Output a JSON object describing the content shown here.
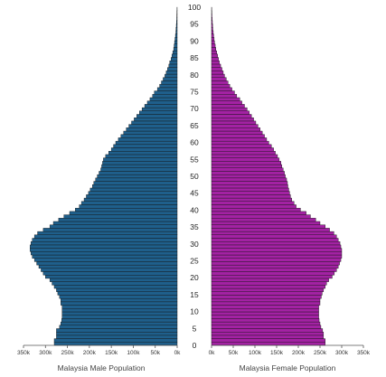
{
  "chart_data": {
    "type": "bar",
    "orientation": "horizontal-pyramid",
    "colors": {
      "male": "#1f5f8b",
      "female": "#a322a3",
      "bar_edge": "#111111"
    },
    "ages": [
      0,
      1,
      2,
      3,
      4,
      5,
      6,
      7,
      8,
      9,
      10,
      11,
      12,
      13,
      14,
      15,
      16,
      17,
      18,
      19,
      20,
      21,
      22,
      23,
      24,
      25,
      26,
      27,
      28,
      29,
      30,
      31,
      32,
      33,
      34,
      35,
      36,
      37,
      38,
      39,
      40,
      41,
      42,
      43,
      44,
      45,
      46,
      47,
      48,
      49,
      50,
      51,
      52,
      53,
      54,
      55,
      56,
      57,
      58,
      59,
      60,
      61,
      62,
      63,
      64,
      65,
      66,
      67,
      68,
      69,
      70,
      71,
      72,
      73,
      74,
      75,
      76,
      77,
      78,
      79,
      80,
      81,
      82,
      83,
      84,
      85,
      86,
      87,
      88,
      89,
      90,
      91,
      92,
      93,
      94,
      95,
      96,
      97,
      98,
      99,
      100
    ],
    "age_ticks": [
      "0",
      "5",
      "10",
      "15",
      "20",
      "25",
      "30",
      "35",
      "40",
      "45",
      "50",
      "55",
      "60",
      "65",
      "70",
      "75",
      "80",
      "85",
      "90",
      "95",
      "100"
    ],
    "series": [
      {
        "name": "Malaysia Male Population",
        "values": [
          280000,
          280000,
          275000,
          275000,
          275000,
          268000,
          265000,
          263000,
          262000,
          262000,
          262000,
          262000,
          265000,
          265000,
          268000,
          272000,
          275000,
          280000,
          285000,
          290000,
          300000,
          305000,
          310000,
          315000,
          320000,
          325000,
          330000,
          333000,
          335000,
          335000,
          333000,
          330000,
          325000,
          318000,
          305000,
          290000,
          282000,
          270000,
          258000,
          245000,
          232000,
          223000,
          218000,
          212000,
          207000,
          202000,
          198000,
          193000,
          190000,
          186000,
          182000,
          178000,
          174000,
          172000,
          170000,
          168000,
          163000,
          156000,
          150000,
          145000,
          140000,
          134000,
          128000,
          122000,
          116000,
          110000,
          104000,
          98000,
          92000,
          86000,
          80000,
          74000,
          68000,
          62000,
          56000,
          52000,
          45000,
          40000,
          36000,
          32000,
          28000,
          25000,
          22000,
          19000,
          17000,
          14000,
          12000,
          10000,
          8000,
          7000,
          6000,
          5000,
          4000,
          3000,
          2500,
          2000,
          1500,
          1000,
          800,
          500,
          300
        ]
      },
      {
        "name": "Malaysia Female Population",
        "values": [
          262000,
          262000,
          258000,
          258000,
          256000,
          252000,
          250000,
          248000,
          247000,
          247000,
          247000,
          247000,
          250000,
          250000,
          253000,
          255000,
          258000,
          262000,
          265000,
          270000,
          278000,
          283000,
          288000,
          292000,
          295000,
          298000,
          300000,
          300000,
          300000,
          298000,
          296000,
          292000,
          288000,
          282000,
          272000,
          262000,
          250000,
          240000,
          228000,
          218000,
          205000,
          195000,
          190000,
          185000,
          182000,
          180000,
          178000,
          176000,
          175000,
          173000,
          170000,
          168000,
          165000,
          162000,
          160000,
          156000,
          152000,
          147000,
          143000,
          138000,
          132000,
          127000,
          122000,
          117000,
          112000,
          107000,
          102000,
          97000,
          92000,
          87000,
          82000,
          76000,
          70000,
          65000,
          58000,
          53000,
          47000,
          42000,
          38000,
          34000,
          30000,
          27000,
          24000,
          21000,
          18000,
          16000,
          14000,
          12000,
          10000,
          8500,
          7000,
          6000,
          5000,
          4000,
          3000,
          2500,
          2000,
          1500,
          1000,
          700,
          400
        ]
      }
    ],
    "x_ticks": [
      {
        "value": 350000,
        "label": "350k"
      },
      {
        "value": 300000,
        "label": "300k"
      },
      {
        "value": 250000,
        "label": "250k"
      },
      {
        "value": 200000,
        "label": "200k"
      },
      {
        "value": 150000,
        "label": "150k"
      },
      {
        "value": 100000,
        "label": "100k"
      },
      {
        "value": 50000,
        "label": "50k"
      },
      {
        "value": 0,
        "label": "0k"
      }
    ],
    "xlim": [
      0,
      350000
    ],
    "ylim": [
      0,
      100
    ],
    "xlabel_left": "Malaysia Male Population",
    "xlabel_right": "Malaysia Female Population",
    "title": "",
    "grid": false
  }
}
